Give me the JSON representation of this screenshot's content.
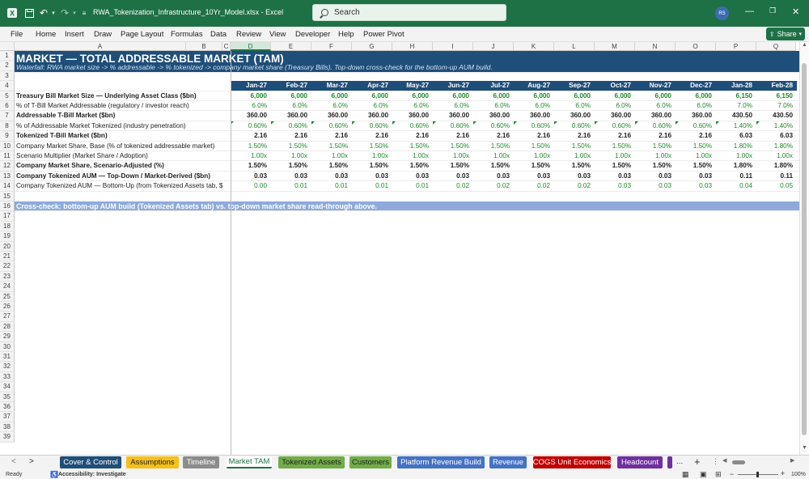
{
  "window": {
    "doc_title": "RWA_Tokenization_Infrastructure_10Yr_Model.xlsx  -  Excel",
    "search_placeholder": "Search",
    "user_initials": "RS",
    "qat_icons": [
      "excel-logo-icon",
      "save-icon",
      "undo-icon",
      "undo-dropdown-icon",
      "redo-icon",
      "redo-dropdown-icon",
      "customize-qat-icon"
    ],
    "window_controls": [
      "minimize-icon",
      "restore-icon",
      "close-icon"
    ]
  },
  "menu": {
    "items": [
      "File",
      "Home",
      "Insert",
      "Draw",
      "Page Layout",
      "Formulas",
      "Data",
      "Review",
      "View",
      "Developer",
      "Help",
      "Power Pivot"
    ],
    "share_label": "Share"
  },
  "columns": [
    "A",
    "B",
    "C",
    "D",
    "E",
    "F",
    "G",
    "H",
    "I",
    "J",
    "K",
    "L",
    "M",
    "N",
    "O",
    "P",
    "Q"
  ],
  "selected_column": "D",
  "rows": {
    "numbers": [
      "1",
      "2",
      "3",
      "4",
      "5",
      "6",
      "7",
      "8",
      "9",
      "10",
      "11",
      "12",
      "13",
      "14",
      "15",
      "16",
      "17",
      "18",
      "19",
      "20",
      "21",
      "22",
      "23",
      "24",
      "25",
      "26",
      "27",
      "28",
      "29",
      "30",
      "31",
      "32",
      "33",
      "34",
      "35",
      "36",
      "37",
      "38",
      "39"
    ]
  },
  "sheet": {
    "title": "MARKET — TOTAL ADDRESSABLE MARKET (TAM)",
    "subtitle": "Waterfall: RWA market size -> % addressable -> % tokenized -> company market share (Treasury Bills). Top-down cross-check for the bottom-up AUM build.",
    "months": [
      "Jan-27",
      "Feb-27",
      "Mar-27",
      "Apr-27",
      "May-27",
      "Jun-27",
      "Jul-27",
      "Aug-27",
      "Sep-27",
      "Oct-27",
      "Nov-27",
      "Dec-27",
      "Jan-28",
      "Feb-28"
    ],
    "data_rows": [
      {
        "label": "Treasury Bill Market Size — Underlying Asset Class ($bn)",
        "bold": true,
        "green": true,
        "tri": false,
        "values": [
          "6,000",
          "6,000",
          "6,000",
          "6,000",
          "6,000",
          "6,000",
          "6,000",
          "6,000",
          "6,000",
          "6,000",
          "6,000",
          "6,000",
          "6,150",
          "6,150"
        ]
      },
      {
        "label": "% of T-Bill Market Addressable (regulatory / investor reach)",
        "bold": false,
        "green": true,
        "tri": false,
        "values": [
          "6.0%",
          "6.0%",
          "6.0%",
          "6.0%",
          "6.0%",
          "6.0%",
          "6.0%",
          "6.0%",
          "6.0%",
          "6.0%",
          "6.0%",
          "6.0%",
          "7.0%",
          "7.0%"
        ]
      },
      {
        "label": "Addressable T-Bill Market ($bn)",
        "bold": true,
        "green": false,
        "tri": false,
        "values": [
          "360.00",
          "360.00",
          "360.00",
          "360.00",
          "360.00",
          "360.00",
          "360.00",
          "360.00",
          "360.00",
          "360.00",
          "360.00",
          "360.00",
          "430.50",
          "430.50"
        ]
      },
      {
        "label": "% of Addressable Market Tokenized (industry penetration)",
        "bold": false,
        "green": true,
        "tri": true,
        "values": [
          "0.60%",
          "0.60%",
          "0.60%",
          "0.60%",
          "0.60%",
          "0.60%",
          "0.60%",
          "0.60%",
          "0.60%",
          "0.60%",
          "0.60%",
          "0.60%",
          "1.40%",
          "1.40%"
        ]
      },
      {
        "label": "Tokenized T-Bill Market ($bn)",
        "bold": true,
        "green": false,
        "tri": false,
        "values": [
          "2.16",
          "2.16",
          "2.16",
          "2.16",
          "2.16",
          "2.16",
          "2.16",
          "2.16",
          "2.16",
          "2.16",
          "2.16",
          "2.16",
          "6.03",
          "6.03"
        ]
      },
      {
        "label": "Company Market Share, Base (% of tokenized addressable market)",
        "bold": false,
        "green": true,
        "tri": false,
        "values": [
          "1.50%",
          "1.50%",
          "1.50%",
          "1.50%",
          "1.50%",
          "1.50%",
          "1.50%",
          "1.50%",
          "1.50%",
          "1.50%",
          "1.50%",
          "1.50%",
          "1.80%",
          "1.80%"
        ]
      },
      {
        "label": "Scenario Multiplier (Market Share / Adoption)",
        "bold": false,
        "green": true,
        "tri": false,
        "values": [
          "1.00x",
          "1.00x",
          "1.00x",
          "1.00x",
          "1.00x",
          "1.00x",
          "1.00x",
          "1.00x",
          "1.00x",
          "1.00x",
          "1.00x",
          "1.00x",
          "1.00x",
          "1.00x"
        ]
      },
      {
        "label": "Company Market Share, Scenario-Adjusted (%)",
        "bold": true,
        "green": false,
        "tri": false,
        "values": [
          "1.50%",
          "1.50%",
          "1.50%",
          "1.50%",
          "1.50%",
          "1.50%",
          "1.50%",
          "1.50%",
          "1.50%",
          "1.50%",
          "1.50%",
          "1.50%",
          "1.80%",
          "1.80%"
        ]
      },
      {
        "label": "Company Tokenized AUM — Top-Down / Market-Derived ($bn)",
        "bold": true,
        "green": false,
        "tri": false,
        "values": [
          "0.03",
          "0.03",
          "0.03",
          "0.03",
          "0.03",
          "0.03",
          "0.03",
          "0.03",
          "0.03",
          "0.03",
          "0.03",
          "0.03",
          "0.11",
          "0.11"
        ]
      },
      {
        "label": "Company Tokenized AUM — Bottom-Up (from Tokenized Assets tab, $",
        "bold": false,
        "green": true,
        "tri": false,
        "values": [
          "0.00",
          "0.01",
          "0.01",
          "0.01",
          "0.01",
          "0.02",
          "0.02",
          "0.02",
          "0.02",
          "0.03",
          "0.03",
          "0.03",
          "0.04",
          "0.05"
        ]
      }
    ],
    "crosscheck": "Cross-check: bottom-up AUM build (Tokenized Assets tab) vs. top-down market share read-through above."
  },
  "tabs": {
    "nav_prev": "<",
    "nav_next": ">",
    "items": [
      {
        "label": "Cover & Control",
        "color": "#1f4e79",
        "text": "#ffffff"
      },
      {
        "label": "Assumptions",
        "color": "#f6c019",
        "text": "#222222"
      },
      {
        "label": "Timeline",
        "color": "#8c8c8c",
        "text": "#ffffff"
      },
      {
        "label": "Market TAM",
        "color": "#ffffff",
        "text": "#222222",
        "active": true
      },
      {
        "label": "Tokenized Assets",
        "color": "#70ad47",
        "text": "#222222"
      },
      {
        "label": "Customers",
        "color": "#70ad47",
        "text": "#222222"
      },
      {
        "label": "Platform Revenue Build",
        "color": "#4472c4",
        "text": "#ffffff"
      },
      {
        "label": "Revenue",
        "color": "#4472c4",
        "text": "#ffffff"
      },
      {
        "label": "COGS Unit Economics",
        "color": "#c00000",
        "text": "#ffffff"
      },
      {
        "label": "Headcount",
        "color": "#7030a0",
        "text": "#ffffff"
      }
    ],
    "more_label": "...",
    "add_label": "+"
  },
  "status": {
    "ready": "Ready",
    "accessibility": "Accessibility: Investigate",
    "zoom": "100%"
  }
}
